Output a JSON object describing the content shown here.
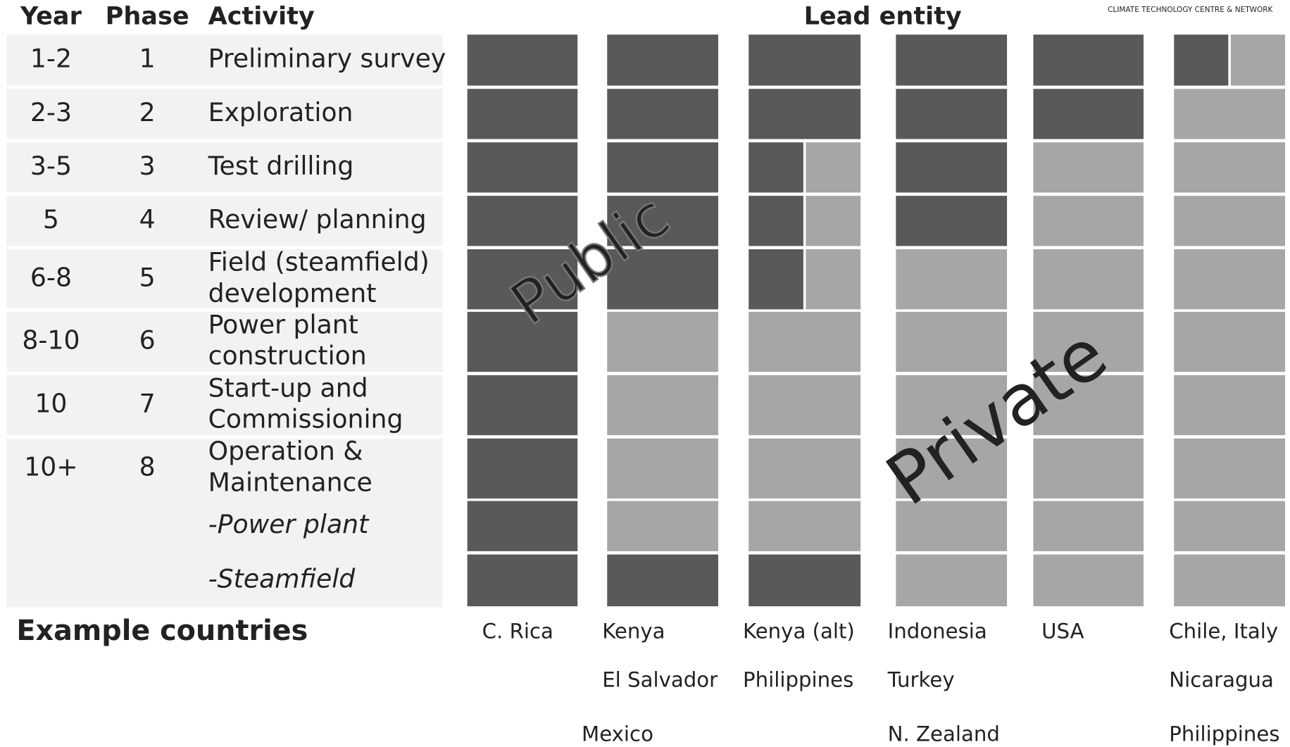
{
  "header": {
    "year": "Year",
    "phase": "Phase",
    "activity": "Activity",
    "lead_entity": "Lead entity",
    "logo_caption": "CLIMATE TECHNOLOGY CENTRE & NETWORK"
  },
  "rows": [
    {
      "year": "1-2",
      "phase": "1",
      "activity": [
        "Preliminary survey"
      ]
    },
    {
      "year": "2-3",
      "phase": "2",
      "activity": [
        "Exploration"
      ]
    },
    {
      "year": "3-5",
      "phase": "3",
      "activity": [
        "Test drilling"
      ]
    },
    {
      "year": "5",
      "phase": "4",
      "activity": [
        "Review/ planning"
      ]
    },
    {
      "year": "6-8",
      "phase": "5",
      "activity": [
        "Field (steamfield)",
        "development"
      ]
    },
    {
      "year": "8-10",
      "phase": "6",
      "activity": [
        "Power plant",
        "construction"
      ]
    },
    {
      "year": "10",
      "phase": "7",
      "activity": [
        "Start-up and",
        "Commissioning"
      ]
    },
    {
      "year": "10+",
      "phase": "8",
      "activity": [
        "Operation &",
        "Maintenance"
      ]
    },
    {
      "activity": [
        "-Power plant"
      ],
      "italic": true
    },
    {
      "activity": [
        "-Steamfield"
      ],
      "italic": true
    }
  ],
  "columns": [
    {
      "cells": [
        "public",
        "public",
        "public",
        "public",
        "public",
        "public",
        "public",
        "public",
        "public",
        "public"
      ],
      "countries": [
        "C. Rica"
      ]
    },
    {
      "cells": [
        "public",
        "public",
        "public",
        "public",
        "public",
        "private",
        "private",
        "private",
        "private",
        "public"
      ],
      "countries": [
        "Kenya",
        "El Salvador",
        "Mexico"
      ]
    },
    {
      "cells": [
        "public",
        "public",
        "split",
        "split",
        "split",
        "private",
        "private",
        "private",
        "private",
        "public"
      ],
      "countries": [
        "Kenya (alt)",
        "Philippines"
      ]
    },
    {
      "cells": [
        "public",
        "public",
        "public",
        "public",
        "private",
        "private",
        "private",
        "private",
        "private",
        "private"
      ],
      "countries": [
        "Indonesia",
        "Turkey",
        "N. Zealand"
      ]
    },
    {
      "cells": [
        "public",
        "public",
        "private",
        "private",
        "private",
        "private",
        "private",
        "private",
        "private",
        "private"
      ],
      "countries": [
        "USA"
      ]
    },
    {
      "cells": [
        "split",
        "private",
        "private",
        "private",
        "private",
        "private",
        "private",
        "private",
        "private",
        "private"
      ],
      "countries": [
        "Chile, Italy",
        "Nicaragua",
        "Philippines"
      ]
    }
  ],
  "colors": {
    "public": "#595959",
    "private": "#a6a6a6"
  },
  "footer": {
    "title": "Example countries"
  },
  "overlay": {
    "public": "Public",
    "private": "Private"
  }
}
